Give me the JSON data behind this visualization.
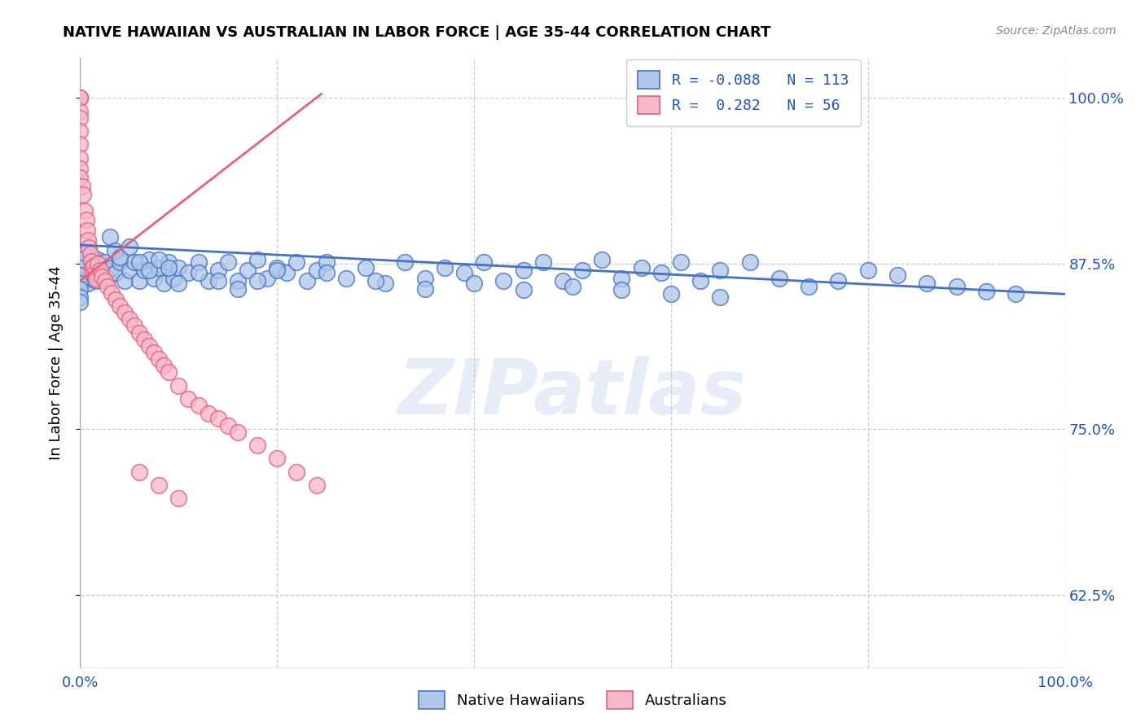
{
  "title": "NATIVE HAWAIIAN VS AUSTRALIAN IN LABOR FORCE | AGE 35-44 CORRELATION CHART",
  "source": "Source: ZipAtlas.com",
  "ylabel": "In Labor Force | Age 35-44",
  "xlim": [
    0.0,
    1.0
  ],
  "ylim": [
    0.57,
    1.03
  ],
  "yticks": [
    0.625,
    0.75,
    0.875,
    1.0
  ],
  "ytick_labels": [
    "62.5%",
    "75.0%",
    "87.5%",
    "100.0%"
  ],
  "xticks": [
    0.0,
    0.2,
    0.4,
    0.6,
    0.8,
    1.0
  ],
  "xtick_labels": [
    "0.0%",
    "",
    "",
    "",
    "",
    "100.0%"
  ],
  "blue_R": -0.088,
  "blue_N": 113,
  "pink_R": 0.282,
  "pink_N": 56,
  "blue_color": "#aec6e8",
  "pink_color": "#f4b8c8",
  "blue_line_color": "#4472c4",
  "pink_line_color": "#e8607a",
  "legend_blue_label": "Native Hawaiians",
  "legend_pink_label": "Australians",
  "watermark": "ZIPatlas",
  "blue_x": [
    0.002,
    0.003,
    0.004,
    0.005,
    0.006,
    0.007,
    0.008,
    0.009,
    0.01,
    0.011,
    0.012,
    0.013,
    0.014,
    0.015,
    0.016,
    0.017,
    0.018,
    0.019,
    0.02,
    0.022,
    0.025,
    0.028,
    0.032,
    0.036,
    0.04,
    0.045,
    0.05,
    0.055,
    0.06,
    0.065,
    0.07,
    0.075,
    0.08,
    0.085,
    0.09,
    0.095,
    0.1,
    0.11,
    0.12,
    0.13,
    0.14,
    0.15,
    0.16,
    0.17,
    0.18,
    0.19,
    0.2,
    0.21,
    0.22,
    0.23,
    0.24,
    0.25,
    0.27,
    0.29,
    0.31,
    0.33,
    0.35,
    0.37,
    0.39,
    0.41,
    0.43,
    0.45,
    0.47,
    0.49,
    0.51,
    0.53,
    0.55,
    0.57,
    0.59,
    0.61,
    0.63,
    0.65,
    0.68,
    0.71,
    0.74,
    0.77,
    0.8,
    0.83,
    0.86,
    0.89,
    0.92,
    0.95,
    0.0,
    0.0,
    0.0,
    0.0,
    0.0,
    0.0,
    0.0,
    0.0,
    0.03,
    0.035,
    0.04,
    0.05,
    0.06,
    0.07,
    0.08,
    0.09,
    0.1,
    0.12,
    0.14,
    0.16,
    0.18,
    0.2,
    0.25,
    0.3,
    0.35,
    0.4,
    0.45,
    0.5,
    0.55,
    0.6,
    0.65
  ],
  "blue_y": [
    0.875,
    0.882,
    0.87,
    0.878,
    0.865,
    0.872,
    0.86,
    0.868,
    0.876,
    0.864,
    0.872,
    0.88,
    0.868,
    0.876,
    0.862,
    0.87,
    0.878,
    0.864,
    0.872,
    0.868,
    0.876,
    0.864,
    0.872,
    0.868,
    0.876,
    0.862,
    0.87,
    0.876,
    0.862,
    0.87,
    0.878,
    0.864,
    0.872,
    0.86,
    0.876,
    0.864,
    0.872,
    0.868,
    0.876,
    0.862,
    0.87,
    0.876,
    0.862,
    0.87,
    0.878,
    0.864,
    0.872,
    0.868,
    0.876,
    0.862,
    0.87,
    0.876,
    0.864,
    0.872,
    0.86,
    0.876,
    0.864,
    0.872,
    0.868,
    0.876,
    0.862,
    0.87,
    0.876,
    0.862,
    0.87,
    0.878,
    0.864,
    0.872,
    0.868,
    0.876,
    0.862,
    0.87,
    0.876,
    0.864,
    0.858,
    0.862,
    0.87,
    0.866,
    0.86,
    0.858,
    0.854,
    0.852,
    0.882,
    0.878,
    0.872,
    0.866,
    0.86,
    0.856,
    0.85,
    0.846,
    0.895,
    0.885,
    0.88,
    0.888,
    0.876,
    0.87,
    0.878,
    0.872,
    0.86,
    0.868,
    0.862,
    0.856,
    0.862,
    0.87,
    0.868,
    0.862,
    0.856,
    0.86,
    0.855,
    0.858,
    0.855,
    0.852,
    0.85
  ],
  "pink_x": [
    0.0,
    0.0,
    0.0,
    0.0,
    0.0,
    0.0,
    0.0,
    0.0,
    0.0,
    0.0,
    0.002,
    0.003,
    0.005,
    0.006,
    0.007,
    0.008,
    0.009,
    0.01,
    0.011,
    0.012,
    0.013,
    0.014,
    0.015,
    0.016,
    0.018,
    0.02,
    0.022,
    0.025,
    0.028,
    0.032,
    0.036,
    0.04,
    0.045,
    0.05,
    0.055,
    0.06,
    0.065,
    0.07,
    0.075,
    0.08,
    0.085,
    0.09,
    0.1,
    0.11,
    0.12,
    0.13,
    0.14,
    0.15,
    0.16,
    0.18,
    0.2,
    0.22,
    0.24,
    0.06,
    0.08,
    0.1
  ],
  "pink_y": [
    1.0,
    1.0,
    1.0,
    0.99,
    0.985,
    0.975,
    0.965,
    0.955,
    0.947,
    0.94,
    0.933,
    0.927,
    0.915,
    0.908,
    0.9,
    0.893,
    0.887,
    0.882,
    0.877,
    0.872,
    0.868,
    0.873,
    0.868,
    0.863,
    0.875,
    0.87,
    0.865,
    0.862,
    0.858,
    0.853,
    0.848,
    0.843,
    0.838,
    0.833,
    0.828,
    0.823,
    0.818,
    0.813,
    0.808,
    0.803,
    0.798,
    0.793,
    0.783,
    0.773,
    0.768,
    0.762,
    0.758,
    0.753,
    0.748,
    0.738,
    0.728,
    0.718,
    0.708,
    0.718,
    0.708,
    0.698
  ],
  "blue_trend_x": [
    0.0,
    1.0
  ],
  "blue_trend_y": [
    0.889,
    0.852
  ],
  "pink_trend_x": [
    0.0,
    0.245
  ],
  "pink_trend_y": [
    0.862,
    1.003
  ]
}
